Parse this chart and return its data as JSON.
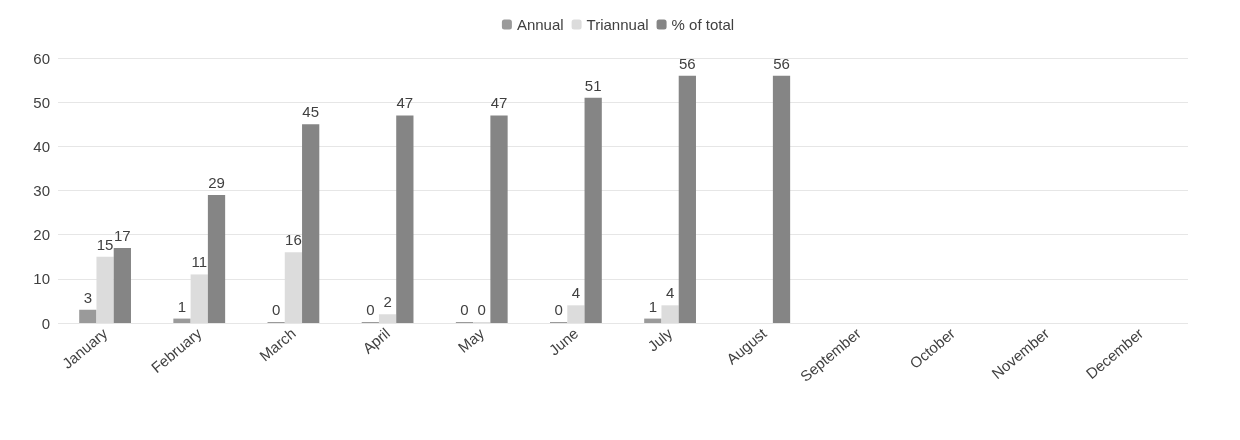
{
  "chart_data": {
    "type": "bar",
    "categories": [
      "January",
      "February",
      "March",
      "April",
      "May",
      "June",
      "July",
      "August",
      "September",
      "October",
      "November",
      "December"
    ],
    "series": [
      {
        "name": "Annual",
        "color": "#9a9a9a",
        "values": [
          3,
          1,
          0,
          0,
          0,
          0,
          1,
          null,
          null,
          null,
          null,
          null
        ]
      },
      {
        "name": "Triannual",
        "color": "#dcdcdc",
        "values": [
          15,
          11,
          16,
          2,
          0,
          4,
          4,
          null,
          null,
          null,
          null,
          null
        ]
      },
      {
        "name": "% of total",
        "color": "#858585",
        "values": [
          17,
          29,
          45,
          47,
          47,
          51,
          56,
          56,
          null,
          null,
          null,
          null
        ]
      }
    ],
    "ylim": [
      0,
      60
    ],
    "yticks": [
      0,
      10,
      20,
      30,
      40,
      50,
      60
    ],
    "grid": "y",
    "legend": "top",
    "data_labels": true
  }
}
